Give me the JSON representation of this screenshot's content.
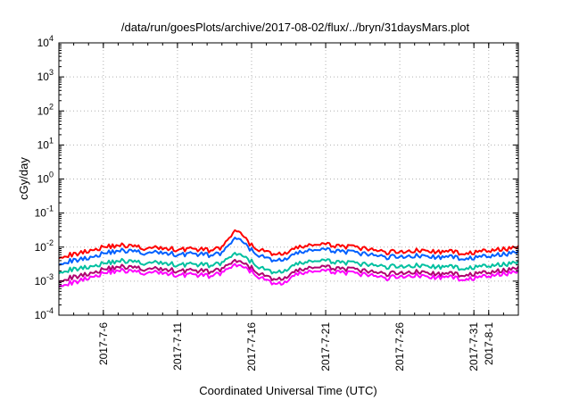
{
  "chart_data": {
    "type": "line",
    "title": "/data/run/goesPlots/archive/2017-08-02/flux/../bryn/31daysMars.plot",
    "xlabel": "Coordinated Universal Time (UTC)",
    "ylabel": "cGy/day",
    "y_scale": "log",
    "ylim": [
      0.0001,
      10000
    ],
    "xlim": [
      "2017-07-03",
      "2017-08-03"
    ],
    "grid": true,
    "y_ticks": [
      {
        "base": "10",
        "exp": "-4",
        "value": 0.0001
      },
      {
        "base": "10",
        "exp": "-3",
        "value": 0.001
      },
      {
        "base": "10",
        "exp": "-2",
        "value": 0.01
      },
      {
        "base": "10",
        "exp": "-1",
        "value": 0.1
      },
      {
        "base": "10",
        "exp": "0",
        "value": 1
      },
      {
        "base": "10",
        "exp": "1",
        "value": 10
      },
      {
        "base": "10",
        "exp": "2",
        "value": 100
      },
      {
        "base": "10",
        "exp": "3",
        "value": 1000
      },
      {
        "base": "10",
        "exp": "4",
        "value": 10000
      }
    ],
    "x_ticks": [
      {
        "label": "2017-7-6",
        "date": "2017-07-06"
      },
      {
        "label": "2017-7-11",
        "date": "2017-07-11"
      },
      {
        "label": "2017-7-16",
        "date": "2017-07-16"
      },
      {
        "label": "2017-7-21",
        "date": "2017-07-21"
      },
      {
        "label": "2017-7-26",
        "date": "2017-07-26"
      },
      {
        "label": "2017-7-31",
        "date": "2017-07-31"
      },
      {
        "label": "2017-8-1",
        "date": "2017-08-01"
      }
    ],
    "series_x": [
      "2017-07-03",
      "2017-07-04",
      "2017-07-05",
      "2017-07-06",
      "2017-07-07",
      "2017-07-08",
      "2017-07-09",
      "2017-07-10",
      "2017-07-11",
      "2017-07-12",
      "2017-07-13",
      "2017-07-14",
      "2017-07-15",
      "2017-07-16",
      "2017-07-17",
      "2017-07-18",
      "2017-07-19",
      "2017-07-20",
      "2017-07-21",
      "2017-07-22",
      "2017-07-23",
      "2017-07-24",
      "2017-07-25",
      "2017-07-26",
      "2017-07-27",
      "2017-07-28",
      "2017-07-29",
      "2017-07-30",
      "2017-07-31",
      "2017-08-01",
      "2017-08-02",
      "2017-08-03"
    ],
    "series": [
      {
        "color": "#ff0000",
        "values": [
          0.0055,
          0.006,
          0.008,
          0.01,
          0.0115,
          0.0105,
          0.009,
          0.0095,
          0.0085,
          0.009,
          0.008,
          0.0095,
          0.032,
          0.011,
          0.007,
          0.006,
          0.009,
          0.012,
          0.0115,
          0.011,
          0.0095,
          0.0085,
          0.007,
          0.0075,
          0.008,
          0.0075,
          0.0072,
          0.007,
          0.0068,
          0.0078,
          0.0085,
          0.011
        ]
      },
      {
        "color": "#0060ff",
        "values": [
          0.0035,
          0.004,
          0.005,
          0.0065,
          0.008,
          0.0075,
          0.0065,
          0.007,
          0.006,
          0.0065,
          0.0058,
          0.0065,
          0.019,
          0.008,
          0.0045,
          0.004,
          0.0062,
          0.0085,
          0.008,
          0.0078,
          0.0066,
          0.006,
          0.005,
          0.0054,
          0.0056,
          0.0052,
          0.005,
          0.0049,
          0.0048,
          0.0054,
          0.006,
          0.008
        ]
      },
      {
        "color": "#00c0a0",
        "values": [
          0.002,
          0.0022,
          0.0027,
          0.0033,
          0.004,
          0.0037,
          0.0033,
          0.0035,
          0.003,
          0.0032,
          0.0029,
          0.0033,
          0.0065,
          0.0037,
          0.002,
          0.0018,
          0.003,
          0.004,
          0.0038,
          0.0037,
          0.0032,
          0.003,
          0.0026,
          0.0028,
          0.0029,
          0.0027,
          0.0026,
          0.0025,
          0.0025,
          0.0028,
          0.003,
          0.004
        ]
      },
      {
        "color": "#b00070",
        "values": [
          0.0011,
          0.0013,
          0.0017,
          0.0022,
          0.0027,
          0.0025,
          0.0022,
          0.0023,
          0.002,
          0.0021,
          0.0019,
          0.0022,
          0.004,
          0.0024,
          0.0013,
          0.0011,
          0.0019,
          0.0026,
          0.0025,
          0.0024,
          0.0021,
          0.0019,
          0.0016,
          0.0018,
          0.0019,
          0.0017,
          0.0016,
          0.0016,
          0.0016,
          0.0018,
          0.002,
          0.0027
        ]
      },
      {
        "color": "#ff00ff",
        "values": [
          0.0008,
          0.0009,
          0.0013,
          0.0017,
          0.0021,
          0.0019,
          0.0017,
          0.0018,
          0.0015,
          0.0016,
          0.0014,
          0.0017,
          0.003,
          0.0019,
          0.001,
          0.0008,
          0.0015,
          0.002,
          0.0019,
          0.0019,
          0.0016,
          0.0015,
          0.0012,
          0.0014,
          0.0015,
          0.0013,
          0.0013,
          0.0012,
          0.0012,
          0.0014,
          0.0016,
          0.0021
        ]
      }
    ]
  }
}
